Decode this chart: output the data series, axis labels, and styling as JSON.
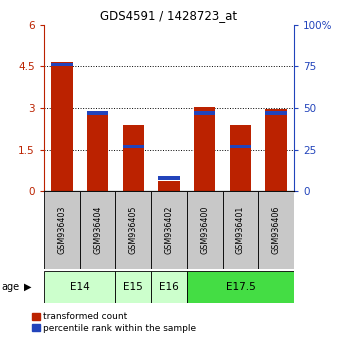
{
  "title": "GDS4591 / 1428723_at",
  "samples": [
    "GSM936403",
    "GSM936404",
    "GSM936405",
    "GSM936402",
    "GSM936400",
    "GSM936401",
    "GSM936406"
  ],
  "transformed_counts": [
    4.65,
    2.85,
    2.4,
    0.35,
    3.05,
    2.4,
    2.95
  ],
  "percentile_ranks_pct": [
    76,
    47,
    27,
    8,
    47,
    27,
    47
  ],
  "left_yticks": [
    0,
    1.5,
    3.0,
    4.5,
    6.0
  ],
  "left_ylabels": [
    "0",
    "1.5",
    "3",
    "4.5",
    "6"
  ],
  "right_yticks": [
    0,
    25,
    50,
    75,
    100
  ],
  "right_ylabels": [
    "0",
    "25",
    "50",
    "75",
    "100%"
  ],
  "ylim": [
    0,
    6
  ],
  "right_ylim": [
    0,
    100
  ],
  "bar_color_red": "#BB2200",
  "bar_color_blue": "#2244BB",
  "bar_width": 0.6,
  "dotted_lines": [
    1.5,
    3.0,
    4.5
  ],
  "age_groups": [
    {
      "label": "E14",
      "start": 0,
      "end": 1,
      "color": "#CCFFCC"
    },
    {
      "label": "E15",
      "start": 2,
      "end": 2,
      "color": "#CCFFCC"
    },
    {
      "label": "E16",
      "start": 3,
      "end": 3,
      "color": "#CCFFCC"
    },
    {
      "label": "E17.5",
      "start": 4,
      "end": 6,
      "color": "#44DD44"
    }
  ],
  "legend_red_label": "transformed count",
  "legend_blue_label": "percentile rank within the sample",
  "sample_bg": "#C8C8C8",
  "bg_color": "#FFFFFF"
}
